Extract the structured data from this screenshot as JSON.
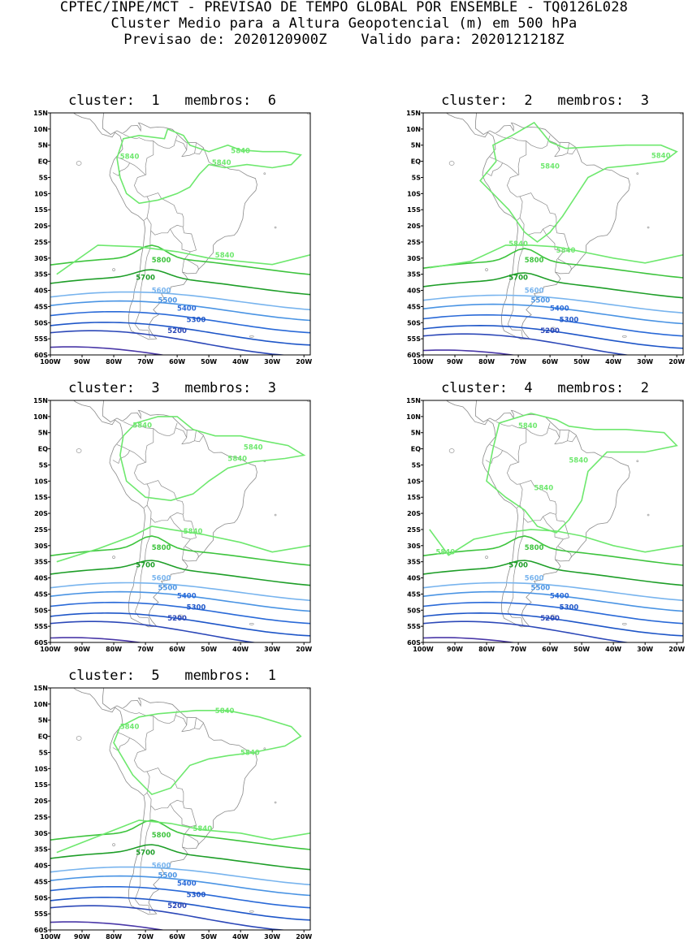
{
  "header": {
    "line1": "CPTEC/INPE/MCT - PREVISAO DE TEMPO GLOBAL POR ENSEMBLE - TQ0126L028",
    "line2": "Cluster Medio para a Altura Geopotencial (m) em 500 hPa",
    "line3": "Previsao de: 2020120900Z    Valido para: 2020121218Z"
  },
  "axes": {
    "lat_labels": [
      "15N",
      "10N",
      "5N",
      "EQ",
      "5S",
      "10S",
      "15S",
      "20S",
      "25S",
      "30S",
      "35S",
      "40S",
      "45S",
      "50S",
      "55S",
      "60S"
    ],
    "lon_labels": [
      "100W",
      "90W",
      "80W",
      "70W",
      "60W",
      "50W",
      "40W",
      "30W",
      "20W"
    ],
    "lat_values": [
      15,
      10,
      5,
      0,
      -5,
      -10,
      -15,
      -20,
      -25,
      -30,
      -35,
      -40,
      -45,
      -50,
      -55,
      -60
    ],
    "lon_values": [
      -100,
      -90,
      -80,
      -70,
      -60,
      -50,
      -40,
      -30,
      -20
    ],
    "lon_range": [
      -100,
      -18
    ],
    "lat_range": [
      -60,
      15
    ]
  },
  "contour_levels": [
    {
      "value": "5840",
      "color": "#6ee86e"
    },
    {
      "value": "5800",
      "color": "#3ec43e"
    },
    {
      "value": "5700",
      "color": "#1e9e28"
    },
    {
      "value": "5600",
      "color": "#78b4ee"
    },
    {
      "value": "5500",
      "color": "#4a94e4"
    },
    {
      "value": "5400",
      "color": "#2a6ad8"
    },
    {
      "value": "5300",
      "color": "#1e56c8"
    },
    {
      "value": "5200",
      "color": "#2c48b8"
    },
    {
      "value": "5100",
      "color": "#4a38a8"
    }
  ],
  "clusters": [
    {
      "label": "cluster:  1   membros:  6"
    },
    {
      "label": "cluster:  2   membros:  3"
    },
    {
      "label": "cluster:  3   membros:  3"
    },
    {
      "label": "cluster:  4   membros:  2"
    },
    {
      "label": "cluster:  5   membros:  1"
    }
  ]
}
